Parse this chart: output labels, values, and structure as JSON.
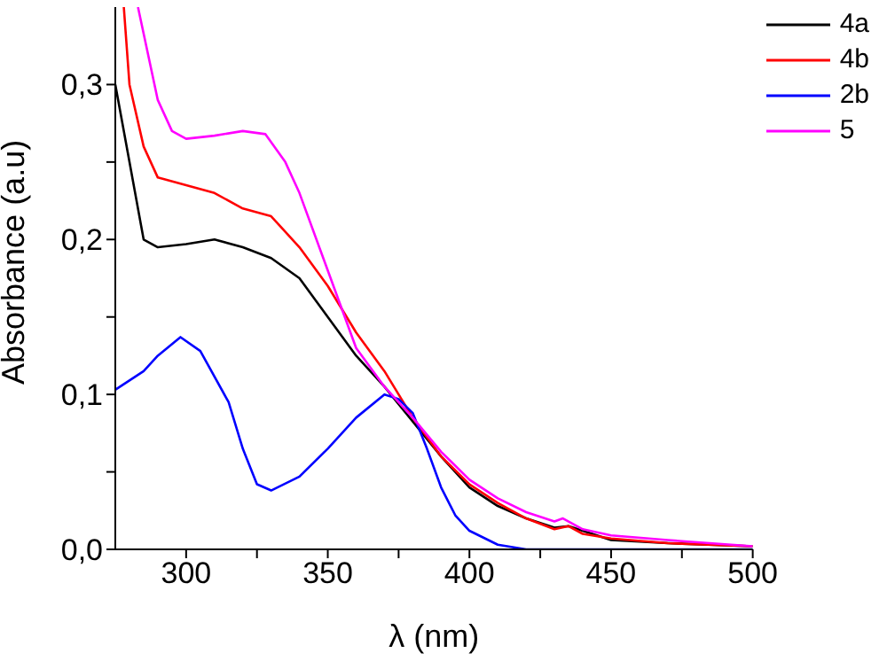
{
  "chart_data": {
    "type": "line",
    "xlabel": "λ (nm)",
    "ylabel": "Absorbance (a.u)",
    "xlim": [
      275,
      500
    ],
    "ylim": [
      0,
      0.35
    ],
    "xticks": [
      300,
      {
        "value": 325,
        "label": null
      },
      350,
      {
        "value": 375,
        "label": null
      },
      400,
      {
        "value": 425,
        "label": null
      },
      450,
      {
        "value": 475,
        "label": null
      },
      500
    ],
    "yticks": [
      {
        "value": 0,
        "label": "0,0"
      },
      {
        "value": 0.05,
        "label": null
      },
      {
        "value": 0.1,
        "label": "0,1"
      },
      {
        "value": 0.15,
        "label": null
      },
      {
        "value": 0.2,
        "label": "0,2"
      },
      {
        "value": 0.25,
        "label": null
      },
      {
        "value": 0.3,
        "label": "0,3"
      }
    ],
    "grid": false,
    "legend": "top right",
    "marker": "none",
    "line_style": "solid",
    "series": [
      {
        "name": "4a",
        "color": "#000000",
        "x": [
          275,
          280,
          285,
          290,
          300,
          310,
          320,
          330,
          340,
          350,
          360,
          370,
          390,
          400,
          410,
          420,
          430,
          435,
          450,
          470,
          500
        ],
        "values": [
          0.3,
          0.25,
          0.2,
          0.195,
          0.197,
          0.2,
          0.195,
          0.188,
          0.175,
          0.15,
          0.125,
          0.105,
          0.06,
          0.04,
          0.028,
          0.02,
          0.014,
          0.015,
          0.006,
          0.004,
          0.002
        ]
      },
      {
        "name": "4b",
        "color": "#ff0000",
        "x": [
          278,
          280,
          285,
          290,
          300,
          310,
          320,
          330,
          340,
          350,
          360,
          370,
          380,
          390,
          400,
          410,
          420,
          430,
          435,
          440,
          450,
          470,
          500
        ],
        "values": [
          0.35,
          0.3,
          0.26,
          0.24,
          0.235,
          0.23,
          0.22,
          0.215,
          0.195,
          0.17,
          0.14,
          0.115,
          0.085,
          0.06,
          0.042,
          0.03,
          0.02,
          0.013,
          0.015,
          0.01,
          0.007,
          0.004,
          0.002
        ]
      },
      {
        "name": "2b",
        "color": "#0000ff",
        "x": [
          275,
          285,
          290,
          298,
          305,
          315,
          320,
          325,
          330,
          340,
          350,
          360,
          370,
          375,
          380,
          385,
          390,
          395,
          400,
          410,
          420,
          500
        ],
        "values": [
          0.103,
          0.115,
          0.125,
          0.137,
          0.128,
          0.095,
          0.065,
          0.042,
          0.038,
          0.047,
          0.065,
          0.085,
          0.1,
          0.097,
          0.088,
          0.065,
          0.04,
          0.022,
          0.012,
          0.003,
          0,
          0
        ]
      },
      {
        "name": "5",
        "color": "#ff00ff",
        "x": [
          283,
          290,
          295,
          300,
          310,
          320,
          328,
          335,
          340,
          350,
          360,
          370,
          380,
          390,
          400,
          410,
          420,
          430,
          433,
          440,
          450,
          470,
          500
        ],
        "values": [
          0.35,
          0.29,
          0.27,
          0.265,
          0.267,
          0.27,
          0.268,
          0.25,
          0.23,
          0.18,
          0.13,
          0.105,
          0.085,
          0.063,
          0.045,
          0.033,
          0.024,
          0.018,
          0.02,
          0.013,
          0.009,
          0.006,
          0.002
        ]
      }
    ]
  }
}
